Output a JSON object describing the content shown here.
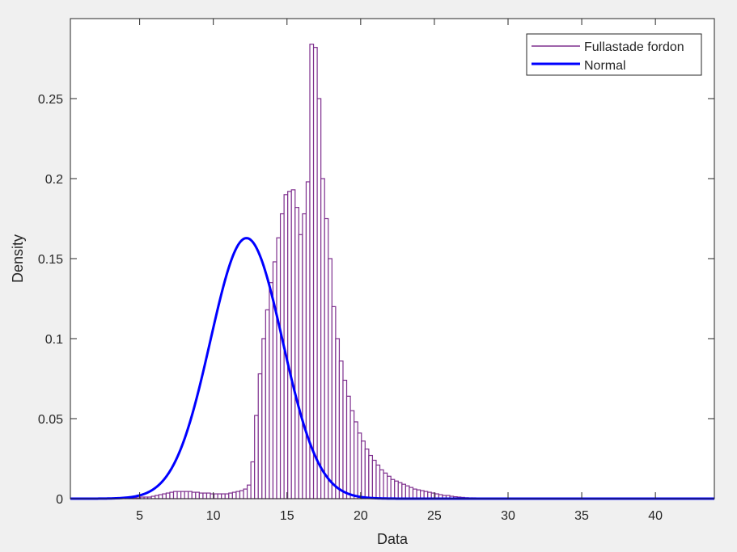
{
  "chart_data": {
    "type": "bar",
    "title": "",
    "xlabel": "Data",
    "ylabel": "Density",
    "xlim": [
      0.3,
      44
    ],
    "ylim": [
      0,
      0.3
    ],
    "xticks": [
      5,
      10,
      15,
      20,
      25,
      30,
      35,
      40
    ],
    "xtick_labels": [
      "5",
      "10",
      "15",
      "20",
      "25",
      "30",
      "35",
      "40"
    ],
    "yticks": [
      0,
      0.05,
      0.1,
      0.15,
      0.2,
      0.25
    ],
    "ytick_labels": [
      "0",
      "0.05",
      "0.1",
      "0.15",
      "0.2",
      "0.25"
    ],
    "grid": false,
    "legend": {
      "location": "top-right",
      "entries": [
        "Fullastade fordon",
        "Normal"
      ]
    },
    "series": [
      {
        "name": "Fullastade fordon",
        "kind": "histogram",
        "color": "#7E2F8E",
        "bin_start": 0.3,
        "bin_width": 0.25,
        "values": [
          0,
          0,
          0,
          0,
          0,
          0,
          0,
          0,
          0,
          0,
          0,
          0,
          0.0005,
          0.0005,
          0.0005,
          0.0005,
          0.0005,
          0.0005,
          0.0005,
          0.001,
          0.001,
          0.001,
          0.0015,
          0.002,
          0.0025,
          0.003,
          0.0035,
          0.004,
          0.0045,
          0.0045,
          0.0045,
          0.0045,
          0.0045,
          0.004,
          0.004,
          0.0035,
          0.0035,
          0.0035,
          0.003,
          0.003,
          0.003,
          0.003,
          0.003,
          0.0035,
          0.004,
          0.0045,
          0.005,
          0.006,
          0.0085,
          0.023,
          0.052,
          0.078,
          0.1,
          0.118,
          0.135,
          0.148,
          0.163,
          0.178,
          0.19,
          0.192,
          0.193,
          0.182,
          0.165,
          0.178,
          0.198,
          0.284,
          0.282,
          0.25,
          0.2,
          0.175,
          0.15,
          0.12,
          0.1,
          0.086,
          0.074,
          0.064,
          0.055,
          0.048,
          0.041,
          0.036,
          0.031,
          0.027,
          0.024,
          0.021,
          0.018,
          0.016,
          0.014,
          0.012,
          0.011,
          0.01,
          0.009,
          0.008,
          0.007,
          0.006,
          0.0055,
          0.005,
          0.0045,
          0.004,
          0.0035,
          0.003,
          0.0025,
          0.002,
          0.002,
          0.0015,
          0.0012,
          0.001,
          0.0008,
          0.0006,
          0.0005,
          0.0005,
          0.0004,
          0.0003,
          0.0003,
          0.0002,
          0.0002,
          0.0001,
          0.0001
        ]
      },
      {
        "name": "Normal",
        "kind": "normal-pdf",
        "color": "#0000FF",
        "mu": 12.25,
        "sigma": 2.45
      }
    ]
  }
}
